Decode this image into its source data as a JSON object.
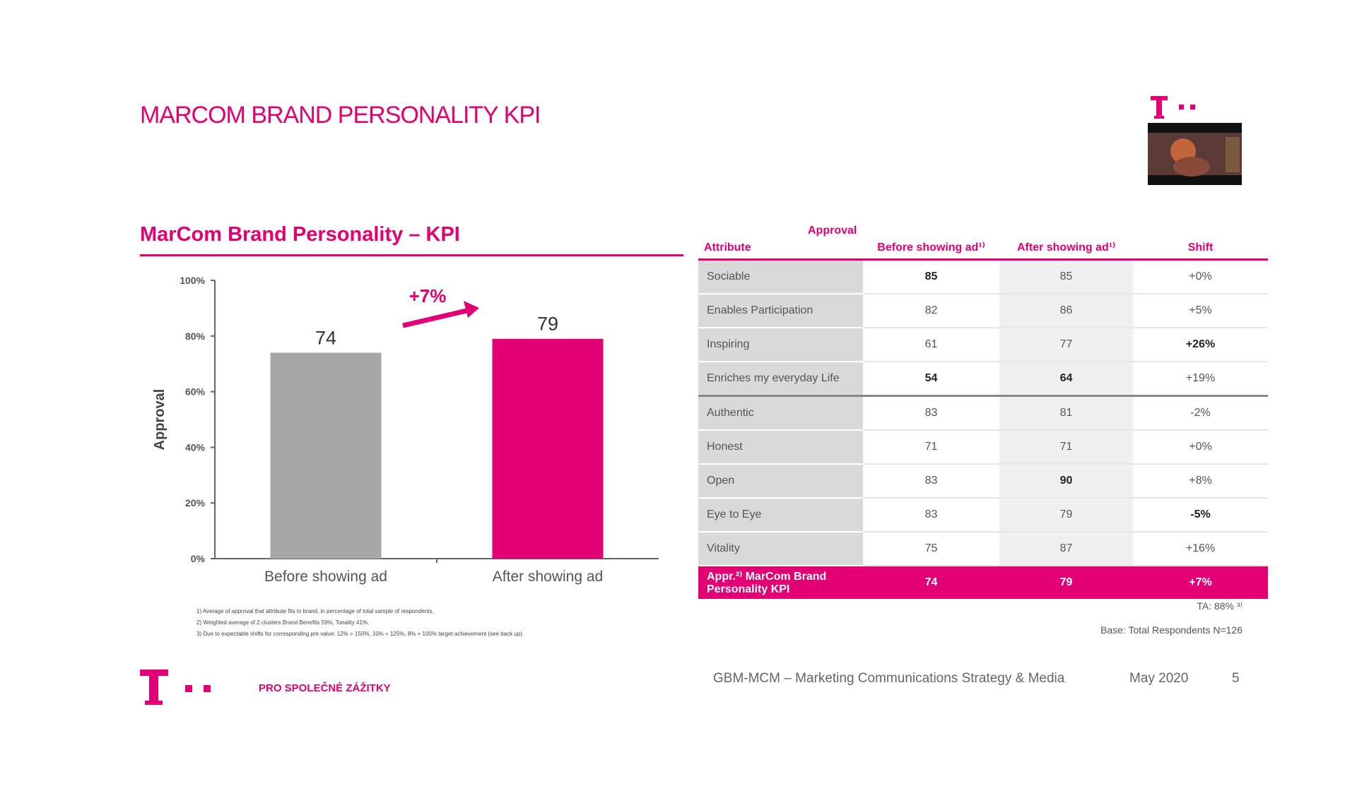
{
  "header": {
    "title": "MARCOM BRAND PERSONALITY KPI"
  },
  "chart_data": {
    "type": "bar",
    "title": "MarCom Brand Personality – KPI",
    "y_label": "Approval",
    "categories": [
      "Before showing ad",
      "After showing ad"
    ],
    "values": [
      74,
      79
    ],
    "colors": [
      "#a6a6a6",
      "#e20074"
    ],
    "ylim": [
      0,
      100
    ],
    "yticks": [
      {
        "value": 0,
        "label": "0%"
      },
      {
        "value": 20,
        "label": "20%"
      },
      {
        "value": 40,
        "label": "40%"
      },
      {
        "value": 60,
        "label": "60%"
      },
      {
        "value": 80,
        "label": "80%"
      },
      {
        "value": 100,
        "label": "100%"
      }
    ],
    "annotation": "+7%"
  },
  "footnotes": [
    "1) Average of approval that attribute fits to brand, in percentage of total sample of respondents.",
    "2) Weighted average of 2 clusters Brand Benefits 59%, Tonality 41%.",
    "3) Due to expectable shifts for corresponding pre value: 12% = 150%, 10% = 125%, 8% = 100% target achievement (see back up)."
  ],
  "table": {
    "group_header": "Approval",
    "columns": [
      "Attribute",
      "Before showing ad¹⁾",
      "After showing ad¹⁾",
      "Shift"
    ],
    "rows": [
      [
        "Sociable",
        "85",
        "85",
        "+0%"
      ],
      [
        "Enables Participation",
        "82",
        "86",
        "+5%"
      ],
      [
        "Inspiring",
        "61",
        "77",
        "+26%"
      ],
      [
        "Enriches my everyday Life",
        "54",
        "64",
        "+19%"
      ],
      [
        "Authentic",
        "83",
        "81",
        "-2%"
      ],
      [
        "Honest",
        "71",
        "71",
        "+0%"
      ],
      [
        "Open",
        "83",
        "90",
        "+8%"
      ],
      [
        "Eye to Eye",
        "83",
        "79",
        "-5%"
      ],
      [
        "Vitality",
        "75",
        "87",
        "+16%"
      ],
      [
        "Appr.²⁾ MarCom Brand Personality KPI",
        "74",
        "79",
        "+7%"
      ]
    ],
    "notes": [
      "TA: 88% ³⁾",
      "Base: Total Respondents N=126"
    ]
  },
  "footer": {
    "tagline": "PRO SPOLEČNÉ ZÁŽITKY",
    "department": "GBM-MCM – Marketing Communications Strategy & Media",
    "date": "May 2020",
    "page": "5"
  }
}
